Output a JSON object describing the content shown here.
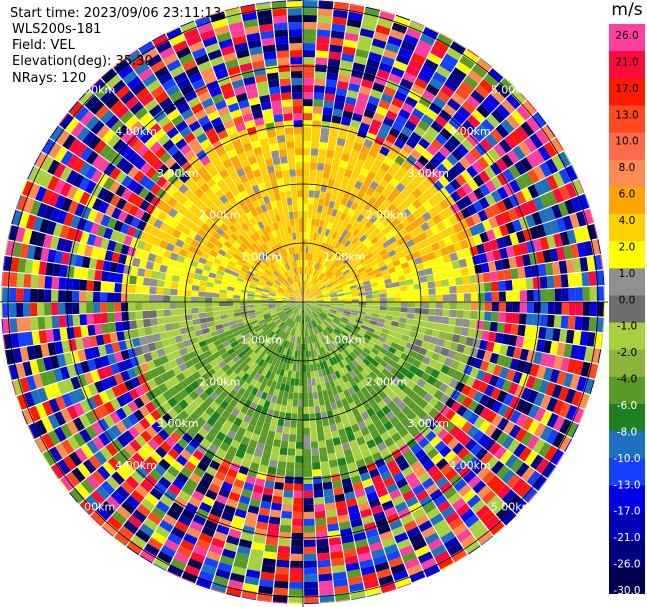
{
  "header": {
    "start_time": "Start time: 2023/09/06 23:11:13",
    "instrument": "WLS200s-181",
    "field": "Field: VEL",
    "elevation": "Elevation(deg): 35.30",
    "nrays": "NRays: 120"
  },
  "colorbar": {
    "unit": "m/s",
    "ticks": [
      "26.0",
      "21.0",
      "17.0",
      "13.0",
      "10.0",
      "8.0",
      "6.0",
      "4.0",
      "2.0",
      "1.0",
      "0.0",
      "-1.0",
      "-2.0",
      "-4.0",
      "-6.0",
      "-8.0",
      "-10.0",
      "-13.0",
      "-17.0",
      "-21.0",
      "-26.0",
      "-30.0"
    ],
    "colors": [
      "#ff3fa0",
      "#ff0a3c",
      "#ff1a00",
      "#ff4a1f",
      "#ff6a4a",
      "#ff8c50",
      "#ffa500",
      "#ffd000",
      "#ffff00",
      "#909090",
      "#6e6e6e",
      "#a8d040",
      "#8cb43c",
      "#5a9a28",
      "#1e8020",
      "#2070c0",
      "#1440ff",
      "#0000e6",
      "#0000b4",
      "#000080",
      "#000050"
    ]
  },
  "range_labels": [
    "1.00km",
    "2.00km",
    "3.00km",
    "4.00km",
    "5.00km"
  ]
}
